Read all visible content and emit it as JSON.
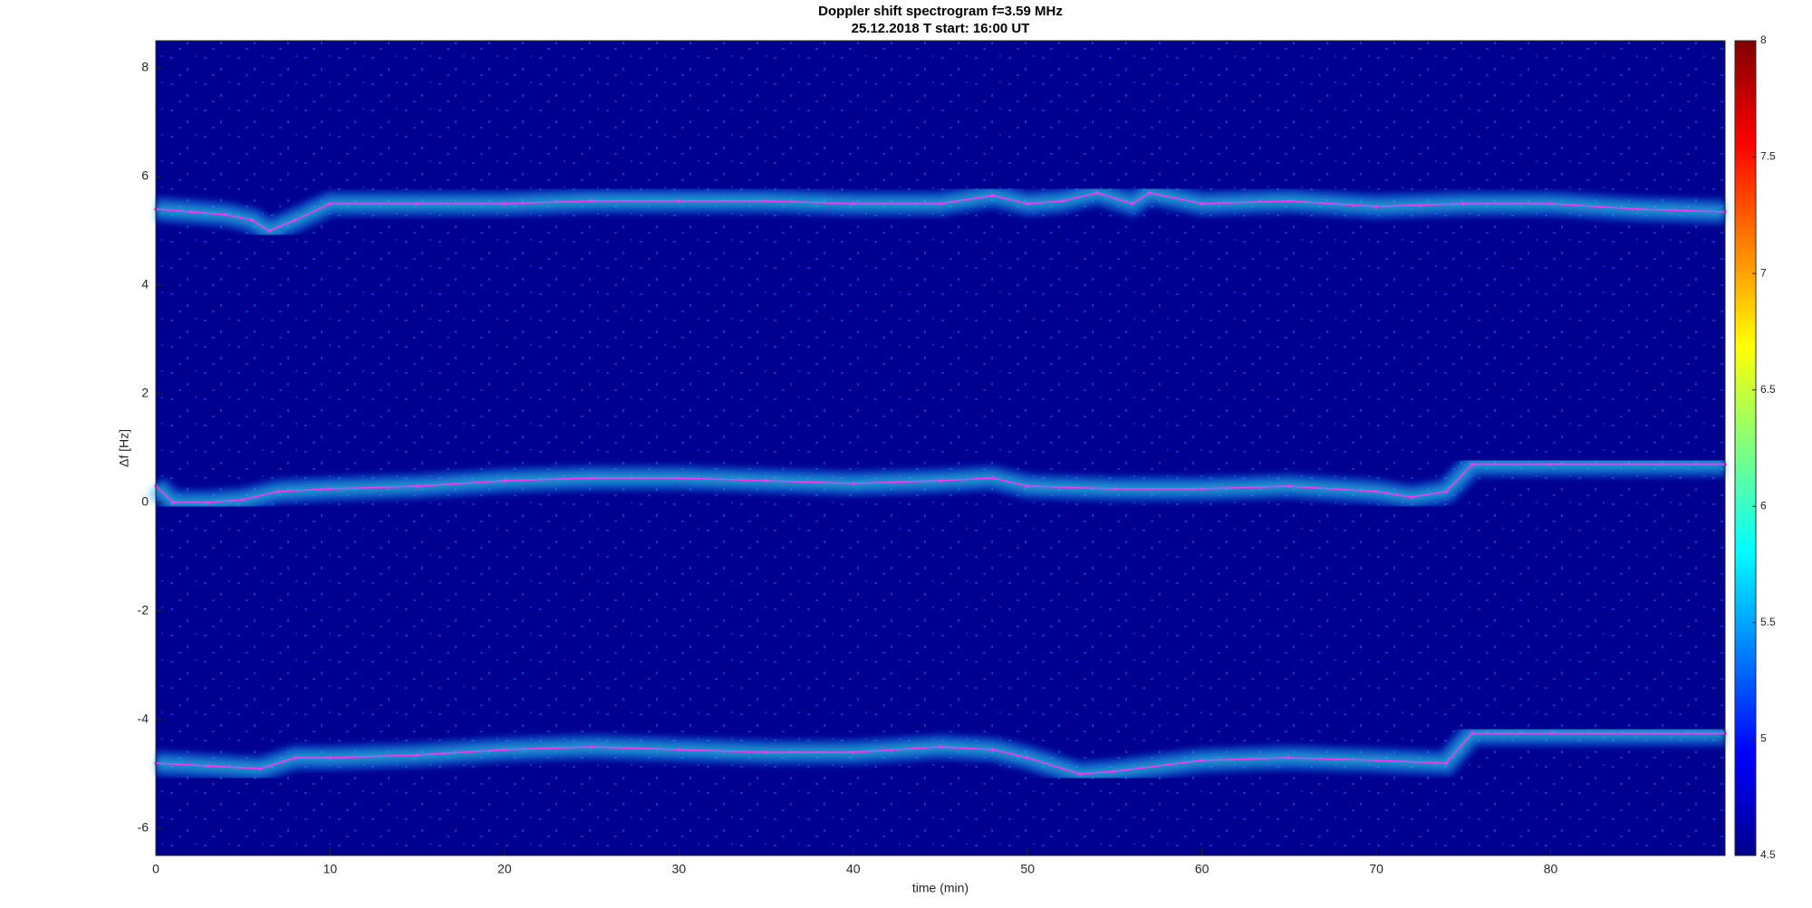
{
  "chart_data": {
    "type": "spectrogram",
    "title": "Doppler shift spectrogram f=3.59 MHz",
    "subtitle": "25.12.2018   T start: 16:00 UT",
    "x_label": "time (min)",
    "y_label": "Δf [Hz]",
    "xlim": [
      0,
      90
    ],
    "xticks": [
      0,
      10,
      20,
      30,
      40,
      50,
      60,
      70,
      80
    ],
    "ylim": [
      -6.5,
      8.5
    ],
    "yticks": [
      -6,
      -4,
      -2,
      0,
      2,
      4,
      6,
      8
    ],
    "clim": [
      4.5,
      8
    ],
    "cticks": [
      4.5,
      5,
      5.5,
      6,
      6.5,
      7,
      7.5,
      8
    ],
    "background_color": "#00008f",
    "series": [
      {
        "color": "#ff33ff",
        "x": [
          0,
          2,
          4,
          5.5,
          6.5,
          8,
          10,
          15,
          20,
          25,
          30,
          35,
          40,
          45,
          48,
          50,
          52,
          54,
          56,
          57,
          60,
          65,
          70,
          75,
          80,
          85,
          90
        ],
        "values": [
          5.4,
          5.35,
          5.3,
          5.2,
          5.0,
          5.2,
          5.5,
          5.5,
          5.5,
          5.55,
          5.55,
          5.55,
          5.5,
          5.5,
          5.65,
          5.5,
          5.55,
          5.7,
          5.5,
          5.7,
          5.5,
          5.55,
          5.45,
          5.5,
          5.5,
          5.4,
          5.35
        ]
      },
      {
        "color": "#ff33ff",
        "x": [
          0,
          1,
          3,
          5,
          7,
          10,
          15,
          20,
          25,
          30,
          35,
          40,
          45,
          48,
          50,
          55,
          60,
          65,
          70,
          72,
          74,
          75.5,
          80,
          90
        ],
        "values": [
          0.3,
          0,
          0,
          0.05,
          0.2,
          0.25,
          0.3,
          0.4,
          0.45,
          0.45,
          0.4,
          0.35,
          0.4,
          0.45,
          0.3,
          0.25,
          0.25,
          0.3,
          0.2,
          0.1,
          0.2,
          0.7,
          0.7,
          0.7
        ]
      },
      {
        "color": "#ff33ff",
        "x": [
          0,
          3,
          6,
          8,
          10,
          15,
          20,
          25,
          30,
          35,
          40,
          45,
          48,
          50,
          53,
          55,
          60,
          65,
          70,
          74,
          75.5,
          80,
          90
        ],
        "values": [
          -4.8,
          -4.85,
          -4.9,
          -4.7,
          -4.7,
          -4.65,
          -4.55,
          -4.5,
          -4.55,
          -4.6,
          -4.6,
          -4.5,
          -4.55,
          -4.7,
          -5.0,
          -4.95,
          -4.75,
          -4.7,
          -4.75,
          -4.8,
          -4.25,
          -4.25,
          -4.25
        ]
      }
    ]
  }
}
